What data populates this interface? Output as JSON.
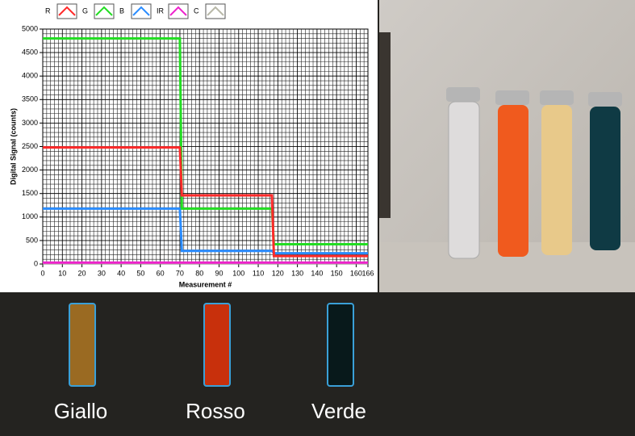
{
  "chart_data": {
    "type": "line",
    "x_label": "Measurement #",
    "y_label": "Digital Signal (counts)",
    "x": [
      0,
      70,
      71,
      117,
      118,
      166
    ],
    "series": [
      {
        "name": "R",
        "color": "#ff2a2a",
        "values": [
          2480,
          2480,
          1460,
          1460,
          170,
          170
        ]
      },
      {
        "name": "G",
        "color": "#22dd22",
        "values": [
          4800,
          4800,
          1180,
          1180,
          420,
          420
        ]
      },
      {
        "name": "B",
        "color": "#2a8cff",
        "values": [
          1180,
          1180,
          280,
          280,
          230,
          230
        ]
      },
      {
        "name": "IR",
        "color": "#ee22cc",
        "values": [
          30,
          30,
          30,
          30,
          30,
          30
        ]
      },
      {
        "name": "C",
        "color": "#b8b8a8",
        "values": [
          20,
          20,
          20,
          20,
          20,
          20
        ]
      }
    ],
    "xlim": [
      0,
      166
    ],
    "xticks": [
      0,
      10,
      20,
      30,
      40,
      50,
      60,
      70,
      80,
      90,
      100,
      110,
      120,
      130,
      140,
      150,
      160,
      166
    ],
    "ylim": [
      0,
      5000
    ],
    "yticks": [
      0,
      500,
      1000,
      1500,
      2000,
      2500,
      3000,
      3500,
      4000,
      4500,
      5000
    ],
    "grid": true
  },
  "swatches": [
    {
      "label": "Giallo",
      "color": "#9a6a22"
    },
    {
      "label": "Rosso",
      "color": "#c8300c"
    },
    {
      "label": "Verde",
      "color": "#08191b"
    }
  ]
}
